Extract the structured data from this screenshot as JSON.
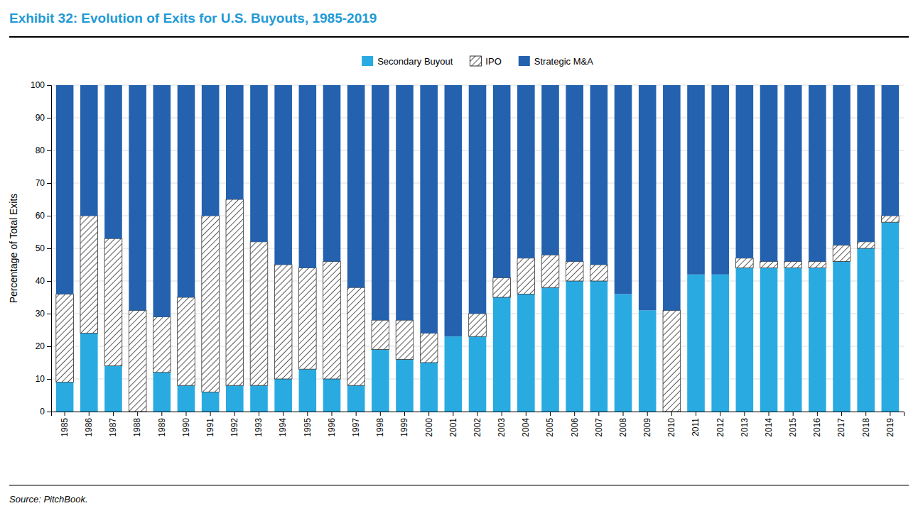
{
  "chart_data": {
    "type": "bar",
    "stacked": true,
    "title": "Exhibit 32: Evolution of Exits for U.S. Buyouts, 1985-2019",
    "ylabel": "Percentage of Total Exits",
    "source": "Source: PitchBook.",
    "categories": [
      "1985",
      "1986",
      "1987",
      "1988",
      "1989",
      "1990",
      "1991",
      "1992",
      "1993",
      "1994",
      "1995",
      "1996",
      "1997",
      "1998",
      "1999",
      "2000",
      "2001",
      "2002",
      "2003",
      "2004",
      "2005",
      "2006",
      "2007",
      "2008",
      "2009",
      "2010",
      "2011",
      "2012",
      "2013",
      "2014",
      "2015",
      "2016",
      "2017",
      "2018",
      "2019"
    ],
    "series": [
      {
        "name": "Secondary Buyout",
        "color": "#29ABE2",
        "values": [
          9,
          24,
          14,
          0,
          12,
          8,
          6,
          8,
          8,
          10,
          13,
          10,
          8,
          19,
          16,
          15,
          23,
          23,
          35,
          36,
          38,
          40,
          40,
          36,
          31,
          0,
          42,
          42,
          44,
          44,
          44,
          44,
          46,
          50,
          58
        ]
      },
      {
        "name": "IPO",
        "color": "#ffffff",
        "values": [
          27,
          36,
          39,
          31,
          17,
          27,
          54,
          57,
          44,
          35,
          31,
          36,
          30,
          9,
          12,
          9,
          0,
          7,
          6,
          11,
          10,
          6,
          5,
          0,
          0,
          31,
          0,
          0,
          3,
          2,
          2,
          2,
          5,
          2,
          2
        ]
      },
      {
        "name": "Strategic M&A",
        "color": "#2461AE",
        "values": [
          64,
          40,
          47,
          69,
          71,
          65,
          40,
          35,
          48,
          55,
          56,
          54,
          62,
          72,
          72,
          76,
          77,
          70,
          59,
          53,
          52,
          54,
          55,
          64,
          69,
          69,
          58,
          58,
          53,
          54,
          54,
          54,
          49,
          48,
          40
        ]
      }
    ],
    "ylim": [
      0,
      100
    ],
    "yticks": [
      0,
      10,
      20,
      30,
      40,
      50,
      60,
      70,
      80,
      90,
      100
    ],
    "grid": true,
    "legend": "top"
  }
}
